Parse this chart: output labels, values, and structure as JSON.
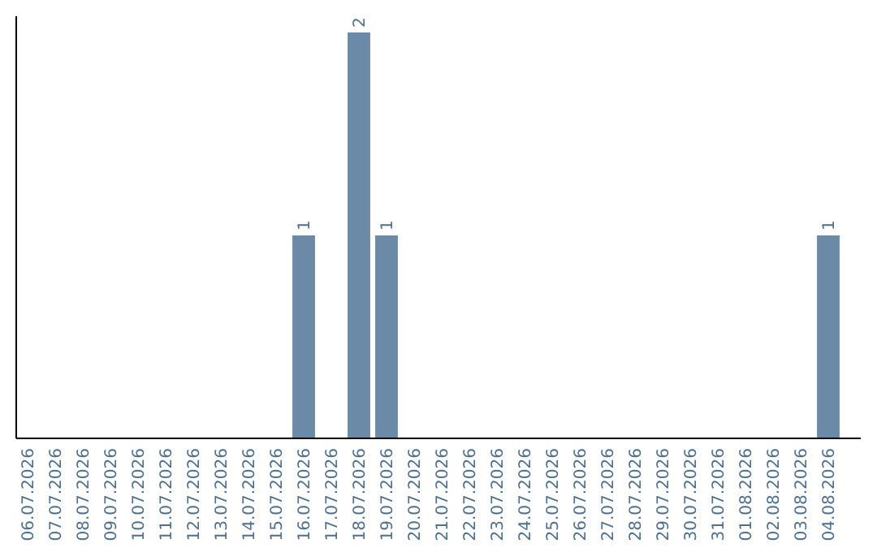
{
  "chart_data": {
    "type": "bar",
    "categories": [
      "06.07.2026",
      "07.07.2026",
      "08.07.2026",
      "09.07.2026",
      "10.07.2026",
      "11.07.2026",
      "12.07.2026",
      "13.07.2026",
      "14.07.2026",
      "15.07.2026",
      "16.07.2026",
      "17.07.2026",
      "18.07.2026",
      "19.07.2026",
      "20.07.2026",
      "21.07.2026",
      "22.07.2026",
      "23.07.2026",
      "24.07.2026",
      "25.07.2026",
      "26.07.2026",
      "27.07.2026",
      "28.07.2026",
      "29.07.2026",
      "30.07.2026",
      "31.07.2026",
      "01.08.2026",
      "02.08.2026",
      "03.08.2026",
      "04.08.2026"
    ],
    "values": [
      0,
      0,
      0,
      0,
      0,
      0,
      0,
      0,
      0,
      0,
      1,
      0,
      2,
      1,
      0,
      0,
      0,
      0,
      0,
      0,
      0,
      0,
      0,
      0,
      0,
      0,
      0,
      0,
      0,
      1
    ],
    "value_labels": [
      null,
      null,
      null,
      null,
      null,
      null,
      null,
      null,
      null,
      null,
      "1",
      null,
      "2",
      "1",
      null,
      null,
      null,
      null,
      null,
      null,
      null,
      null,
      null,
      null,
      null,
      null,
      null,
      null,
      null,
      "1"
    ],
    "color": "#6b8aa8",
    "tick_labels": "x"
  }
}
